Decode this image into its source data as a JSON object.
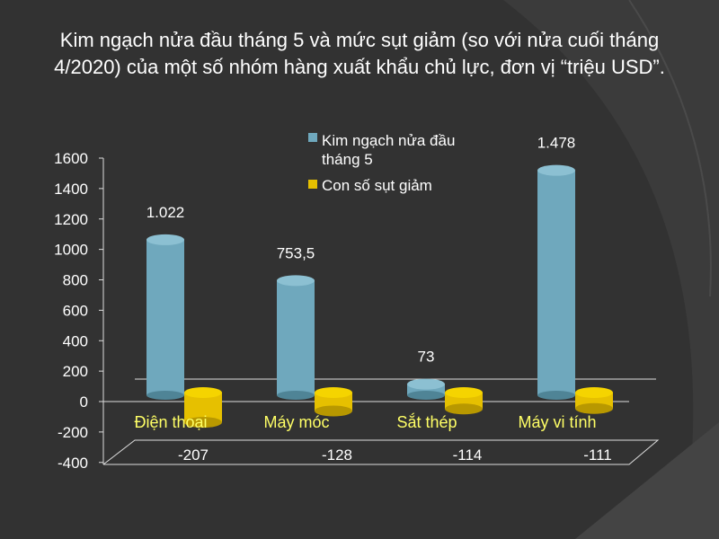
{
  "chart_data": {
    "type": "bar",
    "title": "Kim ngạch nửa đầu tháng 5 và mức sụt giảm (so với nửa cuối tháng 4/2020) của một số nhóm hàng xuất khẩu chủ lực, đơn vị “triệu USD”.",
    "title_lines": [
      "Kim ngạch nửa đầu tháng 5 và mức sụt giảm (so với nửa cuối tháng",
      "4/2020) của một số nhóm hàng xuất khẩu chủ lực, đơn vị “triệu USD”."
    ],
    "categories": [
      "Điện thoại",
      "Máy móc",
      "Sắt thép",
      "Máy vi tính"
    ],
    "series": [
      {
        "name": "Kim ngạch nửa đầu tháng 5",
        "name_lines": [
          "Kim ngạch nửa đầu",
          "tháng 5"
        ],
        "values": [
          1022,
          753.5,
          73,
          1478
        ],
        "labels": [
          "1.022",
          "753,5",
          "73",
          "1.478"
        ],
        "color": "#6fa8bd"
      },
      {
        "name": "Con số sụt giảm",
        "name_lines": [
          "Con số sụt giảm"
        ],
        "values": [
          -207,
          -128,
          -114,
          -111
        ],
        "labels": [
          "-207",
          "-128",
          "-114",
          "-111"
        ],
        "color": "#e6c000"
      }
    ],
    "yticks": [
      "1600",
      "1400",
      "1200",
      "1000",
      "800",
      "600",
      "400",
      "200",
      "0",
      "-200",
      "-400"
    ],
    "ylim": [
      -400,
      1600
    ],
    "xlabel": "",
    "ylabel": "",
    "grid": false,
    "legend": "top-center",
    "three_d": true
  }
}
